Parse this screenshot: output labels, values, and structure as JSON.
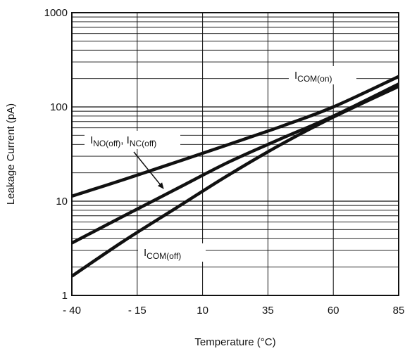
{
  "chart_data": {
    "type": "line",
    "title": "",
    "xlabel": "Temperature (°C)",
    "ylabel": "Leakage Current  (pA)",
    "xlim": [
      -40,
      85
    ],
    "ylim": [
      1,
      1000
    ],
    "yscale": "log",
    "grid": true,
    "x_ticks": [
      -40,
      -15,
      10,
      35,
      60,
      85
    ],
    "x_tick_labels": [
      "- 40",
      "- 15",
      "10",
      "35",
      "60",
      "85"
    ],
    "y_ticks": [
      1,
      10,
      100,
      1000
    ],
    "y_tick_labels": [
      "1",
      "10",
      "100",
      "1000"
    ],
    "series": [
      {
        "name": "I_COM(on)",
        "x": [
          -40,
          -20,
          0,
          20,
          40,
          60,
          85
        ],
        "y": [
          11.3,
          17,
          26,
          40,
          62,
          100,
          210
        ]
      },
      {
        "name": "I_NO(off), I_NC(off)",
        "x": [
          -40,
          -20,
          0,
          20,
          40,
          60,
          85
        ],
        "y": [
          3.6,
          7,
          13.5,
          26,
          46,
          80,
          175
        ]
      },
      {
        "name": "I_COM(off)",
        "x": [
          -40,
          -20,
          0,
          20,
          40,
          60,
          85
        ],
        "y": [
          1.6,
          3.8,
          8.5,
          19,
          40,
          78,
          165
        ]
      }
    ],
    "annotations": [
      {
        "main": "I",
        "sub": "COM(on)"
      },
      {
        "main": "I",
        "sub": "NO(off)",
        "sep": ", ",
        "main2": "I",
        "sub2": "NC(off)"
      },
      {
        "main": "I",
        "sub": "COM(off)"
      }
    ]
  }
}
